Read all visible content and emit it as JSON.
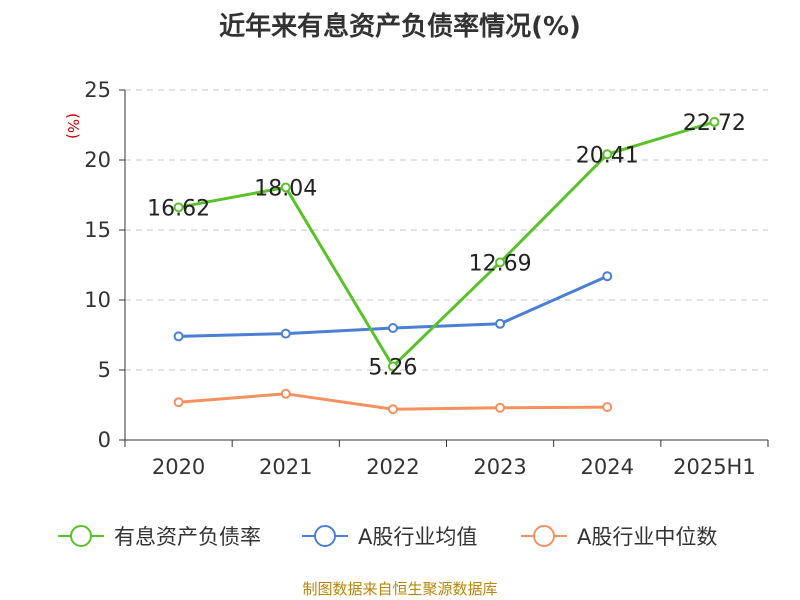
{
  "title": "近年来有息资产负债率情况(%)",
  "footer": "制图数据来自恒生聚源数据库",
  "chart_data": {
    "type": "line",
    "title": "近年来有息资产负债率情况(%)",
    "ylabel": "(%)",
    "xlabel": "",
    "ylim": [
      0,
      25
    ],
    "yticks": [
      "0",
      "5",
      "10",
      "15",
      "20",
      "25"
    ],
    "categories": [
      "2020",
      "2021",
      "2022",
      "2023",
      "2024",
      "2025H1"
    ],
    "grid": "horizontal dashed",
    "legend_position": "bottom",
    "series": [
      {
        "name": "有息资产负债率",
        "color": "#5ac229",
        "values": [
          16.62,
          18.04,
          5.26,
          12.69,
          20.41,
          22.72
        ],
        "labels": [
          "16.62",
          "18.04",
          "5.26",
          "12.69",
          "20.41",
          "22.72"
        ]
      },
      {
        "name": "A股行业均值",
        "color": "#4a7fd4",
        "values": [
          7.4,
          7.6,
          8.0,
          8.3,
          11.7,
          null
        ]
      },
      {
        "name": "A股行业中位数",
        "color": "#f4915e",
        "values": [
          2.7,
          3.3,
          2.2,
          2.3,
          2.35,
          null
        ]
      }
    ]
  }
}
